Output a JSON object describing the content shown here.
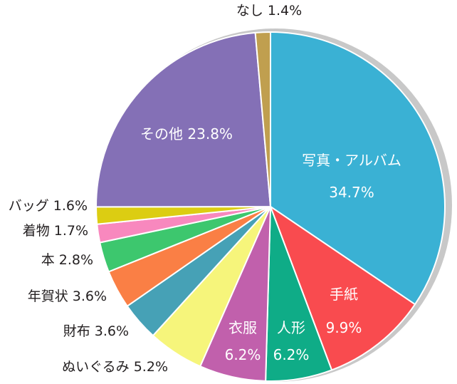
{
  "chart_data": {
    "type": "pie",
    "title": "",
    "legend": "none",
    "slices": [
      {
        "name": "写真・アルバム",
        "value": 34.7,
        "pct": "34.7%",
        "color": "#3ab1d4",
        "label_pos": "inside"
      },
      {
        "name": "手紙",
        "value": 9.9,
        "pct": "9.9%",
        "color": "#f94b4f",
        "label_pos": "inside"
      },
      {
        "name": "人形",
        "value": 6.2,
        "pct": "6.2%",
        "color": "#0fac87",
        "label_pos": "inside"
      },
      {
        "name": "衣服",
        "value": 6.2,
        "pct": "6.2%",
        "color": "#c160ac",
        "label_pos": "inside"
      },
      {
        "name": "ぬいぐるみ",
        "value": 5.2,
        "pct": "5.2%",
        "color": "#f6f57b",
        "label_pos": "outside"
      },
      {
        "name": "財布",
        "value": 3.6,
        "pct": "3.6%",
        "color": "#46a1b6",
        "label_pos": "outside"
      },
      {
        "name": "年賀状",
        "value": 3.6,
        "pct": "3.6%",
        "color": "#fa7f45",
        "label_pos": "outside"
      },
      {
        "name": "本",
        "value": 2.8,
        "pct": "2.8%",
        "color": "#3dc76e",
        "label_pos": "outside"
      },
      {
        "name": "着物",
        "value": 1.7,
        "pct": "1.7%",
        "color": "#f888be",
        "label_pos": "outside"
      },
      {
        "name": "バッグ",
        "value": 1.6,
        "pct": "1.6%",
        "color": "#dccd12",
        "label_pos": "outside"
      },
      {
        "name": "その他",
        "value": 23.8,
        "pct": "23.8%",
        "color": "#8470b6",
        "label_pos": "inside"
      },
      {
        "name": "なし",
        "value": 1.4,
        "pct": "1.4%",
        "color": "#c09f4f",
        "label_pos": "outside"
      }
    ]
  }
}
